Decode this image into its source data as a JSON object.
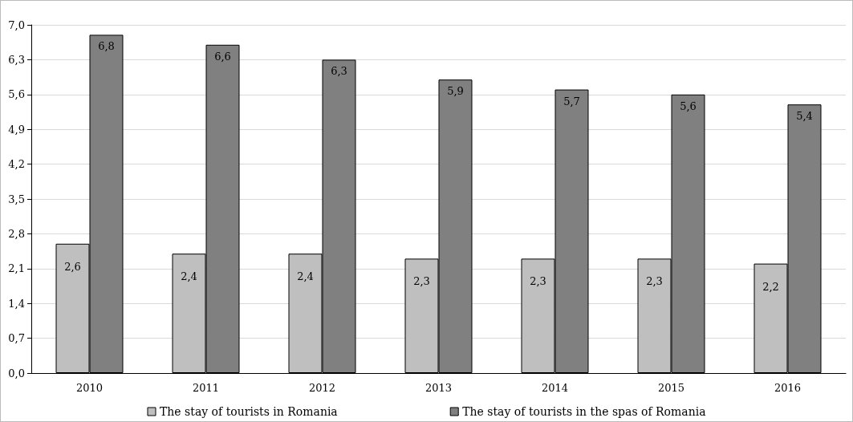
{
  "chart_data": {
    "type": "bar",
    "categories": [
      "2010",
      "2011",
      "2012",
      "2013",
      "2014",
      "2015",
      "2016"
    ],
    "series": [
      {
        "name": "The stay of tourists in Romania",
        "color": "#bfbfbf",
        "values": [
          2.6,
          2.4,
          2.4,
          2.3,
          2.3,
          2.3,
          2.2
        ],
        "value_labels": [
          "2,6",
          "2,4",
          "2,4",
          "2,3",
          "2,3",
          "2,3",
          "2,2"
        ]
      },
      {
        "name": "The stay of tourists in the spas of Romania",
        "color": "#808080",
        "values": [
          6.8,
          6.6,
          6.3,
          5.9,
          5.7,
          5.6,
          5.4
        ],
        "value_labels": [
          "6,8",
          "6,6",
          "6,3",
          "5,9",
          "5,7",
          "5,6",
          "5,4"
        ]
      }
    ],
    "ylim": [
      0,
      7
    ],
    "yticks": [
      {
        "value": 0,
        "label": "0,0"
      },
      {
        "value": 0.7,
        "label": "0,7"
      },
      {
        "value": 1.4,
        "label": "1,4"
      },
      {
        "value": 2.1,
        "label": "2,1"
      },
      {
        "value": 2.8,
        "label": "2,8"
      },
      {
        "value": 3.5,
        "label": "3,5"
      },
      {
        "value": 4.2,
        "label": "4,2"
      },
      {
        "value": 4.9,
        "label": "4,9"
      },
      {
        "value": 5.6,
        "label": "5,6"
      },
      {
        "value": 6.3,
        "label": "6,3"
      },
      {
        "value": 7,
        "label": "7,0"
      }
    ],
    "grid": "y",
    "legend": "bottom"
  }
}
